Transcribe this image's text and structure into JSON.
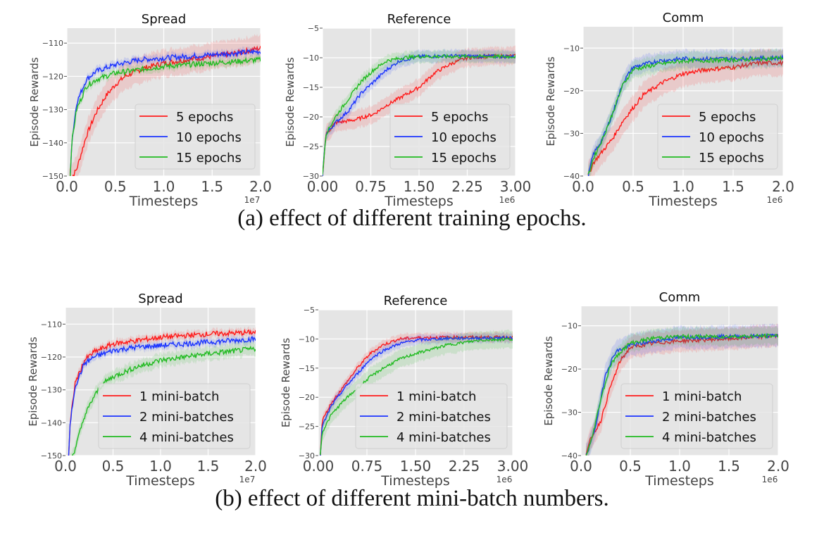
{
  "captions": {
    "a": "(a) effect of different training epochs.",
    "b": "(b) effect of different mini-batch numbers."
  },
  "colors": {
    "red": "#ff1a1a",
    "blue": "#1a33ff",
    "green": "#22bb22",
    "background": "#e5e5e5",
    "grid": "#ffffff"
  },
  "chart_data": [
    {
      "type": "line",
      "title": "Spread",
      "xlabel": "Timesteps",
      "ylabel": "Episode Rewards",
      "x_scale_label": "1e7",
      "xlim": [
        0,
        2.0
      ],
      "ylim": [
        -150,
        -105.5
      ],
      "grid": true,
      "legend": "lower-right",
      "xticks": [
        0,
        0.5,
        1.0,
        1.5,
        2.0
      ],
      "xtick_labels": [
        "0.0",
        "0.5",
        "1.0",
        "1.5",
        "2.0"
      ],
      "yticks": [
        -150,
        -140,
        -130,
        -120,
        -110
      ],
      "ytick_labels": [
        "−150",
        "−140",
        "−130",
        "−120",
        "−110"
      ],
      "series": [
        {
          "name": "5 epochs",
          "color": "#ff1a1a",
          "band": 4,
          "x": [
            0.02,
            0.1,
            0.2,
            0.3,
            0.4,
            0.5,
            0.6,
            0.8,
            1.0,
            1.25,
            1.5,
            1.75,
            2.0
          ],
          "y": [
            -152,
            -148,
            -138,
            -131,
            -126,
            -122.5,
            -120,
            -117.5,
            -116,
            -115,
            -114,
            -113,
            -111.5
          ]
        },
        {
          "name": "10 epochs",
          "color": "#1a33ff",
          "band": 1.2,
          "x": [
            0.03,
            0.05,
            0.1,
            0.2,
            0.3,
            0.5,
            0.75,
            1.0,
            1.5,
            2.0
          ],
          "y": [
            -152,
            -140,
            -128,
            -121,
            -118.5,
            -116.5,
            -115,
            -114.5,
            -113.5,
            -112.5
          ]
        },
        {
          "name": "15 epochs",
          "color": "#22bb22",
          "band": 1.2,
          "x": [
            0.03,
            0.05,
            0.1,
            0.2,
            0.3,
            0.5,
            0.75,
            1.0,
            1.5,
            2.0
          ],
          "y": [
            -152,
            -140,
            -130,
            -123,
            -121,
            -119,
            -118,
            -117,
            -116,
            -115
          ]
        }
      ]
    },
    {
      "type": "line",
      "title": "Reference",
      "xlabel": "Timesteps",
      "ylabel": "Episode Rewards",
      "x_scale_label": "1e6",
      "xlim": [
        0,
        3.0
      ],
      "ylim": [
        -30,
        -5
      ],
      "grid": true,
      "legend": "lower-right",
      "xticks": [
        0,
        0.75,
        1.5,
        2.25,
        3.0
      ],
      "xtick_labels": [
        "0.00",
        "0.75",
        "1.50",
        "2.25",
        "3.00"
      ],
      "yticks": [
        -30,
        -25,
        -20,
        -15,
        -10,
        -5
      ],
      "ytick_labels": [
        "−30",
        "−25",
        "−20",
        "−15",
        "−10",
        "−5"
      ],
      "series": [
        {
          "name": "5 epochs",
          "color": "#ff1a1a",
          "band": 1.5,
          "x": [
            0,
            0.05,
            0.2,
            0.5,
            0.8,
            1.0,
            1.25,
            1.5,
            1.75,
            2.0,
            2.25,
            2.5,
            3.0
          ],
          "y": [
            -30,
            -23,
            -21,
            -20.5,
            -19.5,
            -18,
            -16.5,
            -15,
            -12.5,
            -11,
            -10,
            -9.8,
            -9.7
          ]
        },
        {
          "name": "10 epochs",
          "color": "#1a33ff",
          "band": 1.0,
          "x": [
            0,
            0.05,
            0.2,
            0.4,
            0.6,
            0.8,
            1.0,
            1.2,
            1.5,
            2.0,
            3.0
          ],
          "y": [
            -30,
            -23,
            -21,
            -19,
            -16,
            -14,
            -12,
            -10.5,
            -9.8,
            -9.7,
            -9.8
          ]
        },
        {
          "name": "15 epochs",
          "color": "#22bb22",
          "band": 1.0,
          "x": [
            0,
            0.05,
            0.2,
            0.4,
            0.6,
            0.8,
            1.0,
            1.25,
            1.5,
            3.0
          ],
          "y": [
            -30,
            -23,
            -20,
            -17,
            -14,
            -12,
            -10.5,
            -10,
            -9.8,
            -9.8
          ]
        }
      ]
    },
    {
      "type": "line",
      "title": "Comm",
      "xlabel": "Timesteps",
      "ylabel": "Episode Rewards",
      "x_scale_label": "1e6",
      "xlim": [
        0,
        2.0
      ],
      "ylim": [
        -40,
        -5
      ],
      "grid": true,
      "legend": "lower-right",
      "xticks": [
        0,
        0.5,
        1.0,
        1.5,
        2.0
      ],
      "xtick_labels": [
        "0.0",
        "0.5",
        "1.0",
        "1.5",
        "2.0"
      ],
      "yticks": [
        -40,
        -30,
        -20,
        -10
      ],
      "ytick_labels": [
        "−40",
        "−30",
        "−20",
        "−10"
      ],
      "series": [
        {
          "name": "5 epochs",
          "color": "#ff1a1a",
          "band": 3,
          "x": [
            0.05,
            0.1,
            0.2,
            0.3,
            0.4,
            0.5,
            0.6,
            0.8,
            1.0,
            1.25,
            1.5,
            1.75,
            2.0
          ],
          "y": [
            -40,
            -37,
            -34,
            -31,
            -27,
            -24,
            -21,
            -18,
            -16,
            -15,
            -14.5,
            -13.5,
            -13.5
          ]
        },
        {
          "name": "10 epochs",
          "color": "#1a33ff",
          "band": 2,
          "x": [
            0.05,
            0.1,
            0.2,
            0.3,
            0.4,
            0.5,
            0.75,
            1.0,
            1.5,
            2.0
          ],
          "y": [
            -40,
            -35,
            -31,
            -25,
            -18,
            -14.5,
            -13,
            -12.5,
            -12.5,
            -12.3
          ]
        },
        {
          "name": "15 epochs",
          "color": "#22bb22",
          "band": 2,
          "x": [
            0.05,
            0.1,
            0.2,
            0.3,
            0.4,
            0.5,
            0.75,
            1.0,
            1.5,
            2.0
          ],
          "y": [
            -40,
            -36,
            -31,
            -25,
            -18.5,
            -15,
            -13.8,
            -13,
            -12.8,
            -12.3
          ]
        }
      ]
    },
    {
      "type": "line",
      "title": "Spread",
      "xlabel": "Timesteps",
      "ylabel": "Episode Rewards",
      "x_scale_label": "1e7",
      "xlim": [
        0,
        2.0
      ],
      "ylim": [
        -150,
        -105
      ],
      "grid": true,
      "legend": "lower-right",
      "xticks": [
        0,
        0.5,
        1.0,
        1.5,
        2.0
      ],
      "xtick_labels": [
        "0.0",
        "0.5",
        "1.0",
        "1.5",
        "2.0"
      ],
      "yticks": [
        -150,
        -140,
        -130,
        -120,
        -110
      ],
      "ytick_labels": [
        "−150",
        "−140",
        "−130",
        "−120",
        "−110"
      ],
      "series": [
        {
          "name": "1 mini-batch",
          "color": "#ff1a1a",
          "band": 1.2,
          "x": [
            0.03,
            0.05,
            0.1,
            0.2,
            0.3,
            0.5,
            0.75,
            1.0,
            1.5,
            2.0
          ],
          "y": [
            -152,
            -140,
            -128,
            -121,
            -118.5,
            -116,
            -115,
            -114,
            -113,
            -112.5
          ]
        },
        {
          "name": "2 mini-batches",
          "color": "#1a33ff",
          "band": 1.2,
          "x": [
            0.03,
            0.05,
            0.1,
            0.2,
            0.3,
            0.5,
            0.75,
            1.0,
            1.5,
            2.0
          ],
          "y": [
            -152,
            -140,
            -129,
            -122,
            -120,
            -118,
            -117,
            -116.5,
            -115.5,
            -114.5
          ]
        },
        {
          "name": "4 mini-batches",
          "color": "#22bb22",
          "band": 2,
          "x": [
            0.05,
            0.1,
            0.2,
            0.3,
            0.4,
            0.5,
            0.75,
            1.0,
            1.25,
            1.5,
            2.0
          ],
          "y": [
            -152,
            -148,
            -138,
            -132,
            -128,
            -126,
            -123,
            -121,
            -120,
            -119,
            -117.5
          ]
        }
      ]
    },
    {
      "type": "line",
      "title": "Reference",
      "xlabel": "Timesteps",
      "ylabel": "Episode Rewards",
      "x_scale_label": "1e6",
      "xlim": [
        0,
        3.0
      ],
      "ylim": [
        -30,
        -5
      ],
      "grid": true,
      "legend": "lower-right",
      "xticks": [
        0,
        0.75,
        1.5,
        2.25,
        3.0
      ],
      "xtick_labels": [
        "0.00",
        "0.75",
        "1.50",
        "2.25",
        "3.00"
      ],
      "yticks": [
        -30,
        -25,
        -20,
        -15,
        -10,
        -5
      ],
      "ytick_labels": [
        "−30",
        "−25",
        "−20",
        "−15",
        "−10",
        "−5"
      ],
      "series": [
        {
          "name": "1 mini-batch",
          "color": "#ff1a1a",
          "band": 0.8,
          "x": [
            0.03,
            0.06,
            0.2,
            0.4,
            0.6,
            0.8,
            1.0,
            1.25,
            1.5,
            2.0,
            3.0
          ],
          "y": [
            -30,
            -24,
            -21,
            -18,
            -15,
            -12.5,
            -11,
            -10,
            -9.8,
            -9.7,
            -9.7
          ]
        },
        {
          "name": "2 mini-batches",
          "color": "#1a33ff",
          "band": 0.8,
          "x": [
            0.03,
            0.06,
            0.2,
            0.4,
            0.6,
            0.8,
            1.0,
            1.25,
            1.5,
            2.0,
            3.0
          ],
          "y": [
            -30,
            -25,
            -21.5,
            -18.5,
            -16,
            -13.5,
            -12,
            -10.8,
            -10.2,
            -9.9,
            -9.8
          ]
        },
        {
          "name": "4 mini-batches",
          "color": "#22bb22",
          "band": 1.5,
          "x": [
            0.03,
            0.06,
            0.2,
            0.4,
            0.6,
            0.8,
            1.0,
            1.25,
            1.5,
            2.0,
            2.5,
            3.0
          ],
          "y": [
            -30,
            -26,
            -23,
            -20.5,
            -18.5,
            -16.5,
            -15,
            -13.5,
            -12.5,
            -11,
            -10.2,
            -10
          ]
        }
      ]
    },
    {
      "type": "line",
      "title": "Comm",
      "xlabel": "Timesteps",
      "ylabel": "Episode Rewards",
      "x_scale_label": "1e6",
      "xlim": [
        0,
        2.0
      ],
      "ylim": [
        -40,
        -5.5
      ],
      "grid": true,
      "legend": "lower-right",
      "xticks": [
        0,
        0.5,
        1.0,
        1.5,
        2.0
      ],
      "xtick_labels": [
        "0.0",
        "0.5",
        "1.0",
        "1.5",
        "2.0"
      ],
      "yticks": [
        -40,
        -30,
        -20,
        -10
      ],
      "ytick_labels": [
        "−40",
        "−30",
        "−20",
        "−10"
      ],
      "series": [
        {
          "name": "1 mini-batch",
          "color": "#ff1a1a",
          "band": 2.5,
          "x": [
            0.05,
            0.1,
            0.2,
            0.3,
            0.4,
            0.5,
            0.75,
            1.0,
            1.5,
            2.0
          ],
          "y": [
            -40,
            -36,
            -32,
            -24,
            -18,
            -15,
            -14,
            -13.5,
            -13,
            -12.3
          ]
        },
        {
          "name": "2 mini-batches",
          "color": "#1a33ff",
          "band": 2.5,
          "x": [
            0.05,
            0.1,
            0.15,
            0.25,
            0.35,
            0.5,
            0.75,
            1.0,
            1.5,
            2.0
          ],
          "y": [
            -40,
            -37,
            -33,
            -21,
            -16,
            -14.5,
            -13.5,
            -12.7,
            -12.5,
            -12.3
          ]
        },
        {
          "name": "4 mini-batches",
          "color": "#22bb22",
          "band": 2.0,
          "x": [
            0.05,
            0.1,
            0.2,
            0.3,
            0.4,
            0.5,
            0.75,
            1.0,
            1.5,
            2.0
          ],
          "y": [
            -40,
            -37,
            -27,
            -19,
            -16,
            -14,
            -12.8,
            -12.5,
            -12.5,
            -12.3
          ]
        }
      ]
    }
  ]
}
